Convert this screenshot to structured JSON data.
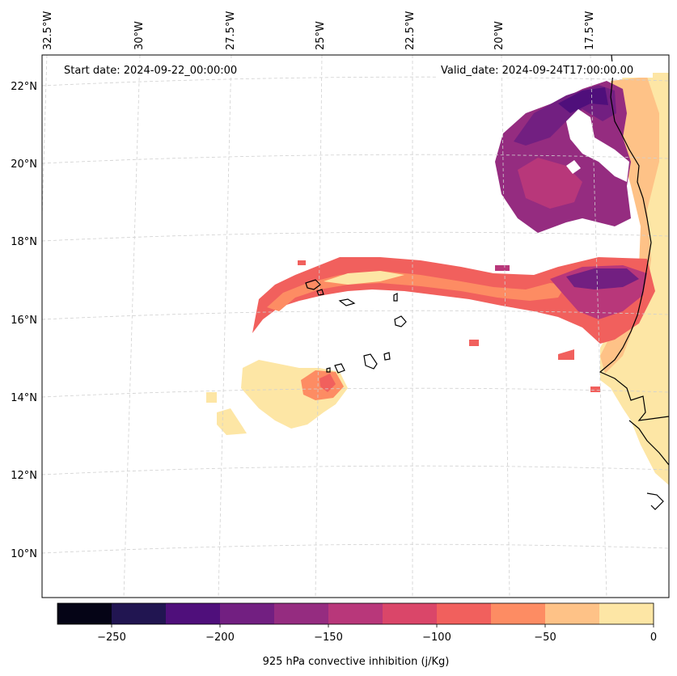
{
  "map": {
    "start_label": "Start date: 2024-09-22_00:00:00",
    "valid_label": "Valid_date: 2024-09-24T17:00:00.00",
    "lon_labels": [
      "32.5°W",
      "30°W",
      "27.5°W",
      "25°W",
      "22.5°W",
      "20°W",
      "17.5°W"
    ],
    "lat_labels": [
      "22°N",
      "20°N",
      "18°N",
      "16°N",
      "14°N",
      "12°N",
      "10°N"
    ]
  },
  "colorbar": {
    "label": "925 hPa convective inhibition (j/Kg)",
    "tick_labels": [
      "−250",
      "−200",
      "−150",
      "−100",
      "−50",
      "0"
    ],
    "levels": [
      -275,
      -250,
      -225,
      -200,
      -175,
      -150,
      -125,
      -100,
      -75,
      -50,
      -25,
      0
    ],
    "colors": [
      "#050416",
      "#211551",
      "#4f0f7b",
      "#721f81",
      "#952c80",
      "#b8377a",
      "#da4669",
      "#f1605d",
      "#fd8c63",
      "#fec287",
      "#fde6a5"
    ]
  },
  "colors": {
    "coastline": "#000000",
    "gridline": "#d0d0d0",
    "background": "#ffffff"
  }
}
